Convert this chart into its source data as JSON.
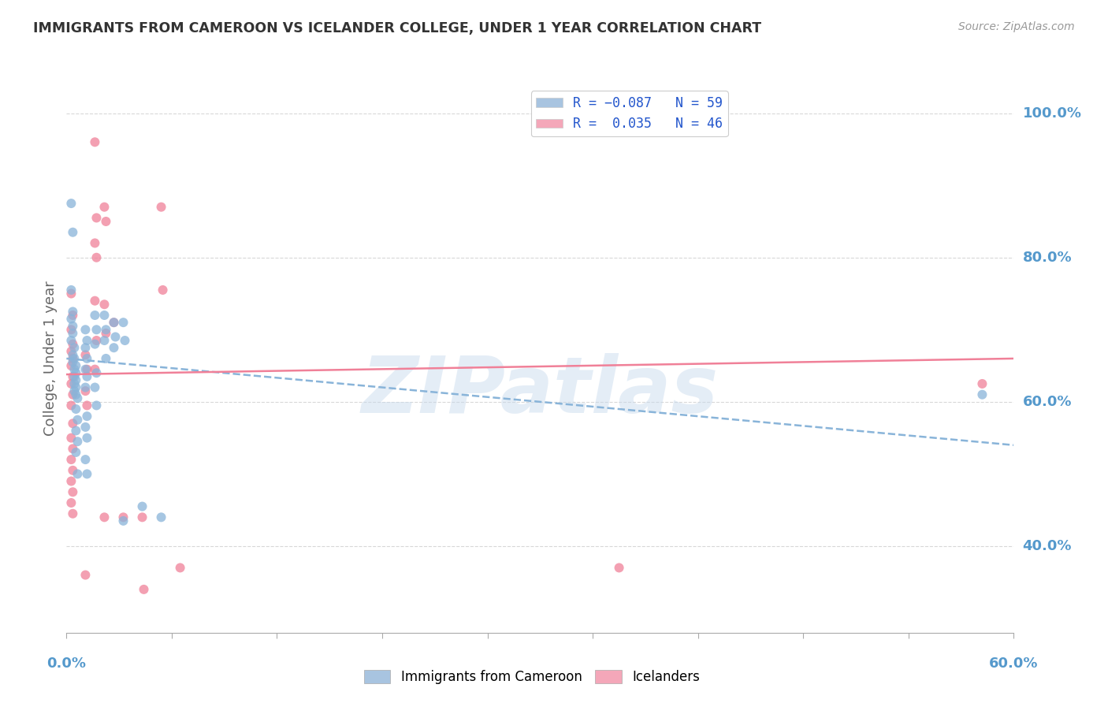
{
  "title": "IMMIGRANTS FROM CAMEROON VS ICELANDER COLLEGE, UNDER 1 YEAR CORRELATION CHART",
  "source": "Source: ZipAtlas.com",
  "ylabel": "College, Under 1 year",
  "right_ytick_values": [
    0.4,
    0.6,
    0.8,
    1.0
  ],
  "right_ytick_labels": [
    "40.0%",
    "60.0%",
    "80.0%",
    "100.0%"
  ],
  "xmin": 0.0,
  "xmax": 0.6,
  "ymin": 0.28,
  "ymax": 1.04,
  "x_tick_positions": [
    0.0,
    0.0667,
    0.1333,
    0.2,
    0.2667,
    0.3333,
    0.4,
    0.4667,
    0.5333,
    0.6
  ],
  "watermark": "ZIPatlas",
  "blue_scatter": [
    [
      0.003,
      0.875
    ],
    [
      0.004,
      0.835
    ],
    [
      0.003,
      0.755
    ],
    [
      0.004,
      0.725
    ],
    [
      0.003,
      0.715
    ],
    [
      0.004,
      0.705
    ],
    [
      0.004,
      0.695
    ],
    [
      0.003,
      0.685
    ],
    [
      0.005,
      0.675
    ],
    [
      0.004,
      0.665
    ],
    [
      0.005,
      0.66
    ],
    [
      0.004,
      0.655
    ],
    [
      0.006,
      0.65
    ],
    [
      0.005,
      0.645
    ],
    [
      0.006,
      0.64
    ],
    [
      0.005,
      0.635
    ],
    [
      0.006,
      0.63
    ],
    [
      0.005,
      0.625
    ],
    [
      0.006,
      0.62
    ],
    [
      0.005,
      0.615
    ],
    [
      0.006,
      0.61
    ],
    [
      0.007,
      0.605
    ],
    [
      0.006,
      0.59
    ],
    [
      0.007,
      0.575
    ],
    [
      0.006,
      0.56
    ],
    [
      0.007,
      0.545
    ],
    [
      0.006,
      0.53
    ],
    [
      0.007,
      0.5
    ],
    [
      0.012,
      0.7
    ],
    [
      0.013,
      0.685
    ],
    [
      0.012,
      0.675
    ],
    [
      0.013,
      0.66
    ],
    [
      0.012,
      0.645
    ],
    [
      0.013,
      0.635
    ],
    [
      0.012,
      0.62
    ],
    [
      0.013,
      0.58
    ],
    [
      0.012,
      0.565
    ],
    [
      0.013,
      0.55
    ],
    [
      0.012,
      0.52
    ],
    [
      0.013,
      0.5
    ],
    [
      0.018,
      0.72
    ],
    [
      0.019,
      0.7
    ],
    [
      0.018,
      0.68
    ],
    [
      0.019,
      0.64
    ],
    [
      0.018,
      0.62
    ],
    [
      0.019,
      0.595
    ],
    [
      0.024,
      0.72
    ],
    [
      0.025,
      0.7
    ],
    [
      0.024,
      0.685
    ],
    [
      0.025,
      0.66
    ],
    [
      0.03,
      0.71
    ],
    [
      0.031,
      0.69
    ],
    [
      0.03,
      0.675
    ],
    [
      0.036,
      0.71
    ],
    [
      0.037,
      0.685
    ],
    [
      0.036,
      0.435
    ],
    [
      0.048,
      0.455
    ],
    [
      0.06,
      0.44
    ],
    [
      0.58,
      0.61
    ]
  ],
  "pink_scatter": [
    [
      0.003,
      0.75
    ],
    [
      0.004,
      0.72
    ],
    [
      0.003,
      0.7
    ],
    [
      0.004,
      0.68
    ],
    [
      0.003,
      0.67
    ],
    [
      0.004,
      0.66
    ],
    [
      0.003,
      0.65
    ],
    [
      0.004,
      0.635
    ],
    [
      0.003,
      0.625
    ],
    [
      0.004,
      0.61
    ],
    [
      0.003,
      0.595
    ],
    [
      0.004,
      0.57
    ],
    [
      0.003,
      0.55
    ],
    [
      0.004,
      0.535
    ],
    [
      0.003,
      0.52
    ],
    [
      0.004,
      0.505
    ],
    [
      0.003,
      0.49
    ],
    [
      0.004,
      0.475
    ],
    [
      0.003,
      0.46
    ],
    [
      0.004,
      0.445
    ],
    [
      0.012,
      0.665
    ],
    [
      0.013,
      0.645
    ],
    [
      0.012,
      0.615
    ],
    [
      0.013,
      0.595
    ],
    [
      0.012,
      0.36
    ],
    [
      0.018,
      0.96
    ],
    [
      0.019,
      0.855
    ],
    [
      0.018,
      0.82
    ],
    [
      0.019,
      0.8
    ],
    [
      0.018,
      0.74
    ],
    [
      0.019,
      0.685
    ],
    [
      0.018,
      0.645
    ],
    [
      0.024,
      0.87
    ],
    [
      0.025,
      0.85
    ],
    [
      0.024,
      0.735
    ],
    [
      0.025,
      0.695
    ],
    [
      0.024,
      0.44
    ],
    [
      0.03,
      0.71
    ],
    [
      0.036,
      0.44
    ],
    [
      0.048,
      0.44
    ],
    [
      0.049,
      0.34
    ],
    [
      0.06,
      0.87
    ],
    [
      0.061,
      0.755
    ],
    [
      0.072,
      0.37
    ],
    [
      0.35,
      0.37
    ],
    [
      0.58,
      0.625
    ]
  ],
  "blue_line_x": [
    0.0,
    0.6
  ],
  "blue_line_y": [
    0.66,
    0.54
  ],
  "pink_line_x": [
    0.0,
    0.6
  ],
  "pink_line_y": [
    0.638,
    0.66
  ],
  "scatter_color_blue": "#89b4d9",
  "scatter_color_pink": "#f08098",
  "legend_patch_blue": "#a8c4e0",
  "legend_patch_pink": "#f4a7b9",
  "scatter_alpha": 0.75,
  "scatter_size": 75,
  "bg_color": "#ffffff",
  "grid_color": "#d8d8d8",
  "title_color": "#333333",
  "axis_label_color": "#5599cc",
  "watermark_color": "#c5d8ec",
  "watermark_alpha": 0.45,
  "tick_color": "#aaaaaa"
}
